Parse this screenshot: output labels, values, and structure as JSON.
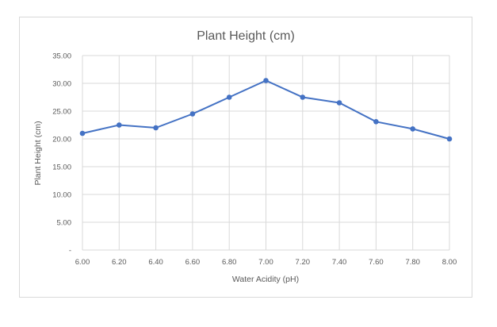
{
  "chart_data": {
    "type": "line",
    "title": "Plant Height (cm)",
    "xlabel": "Water Acidity (pH)",
    "ylabel": "Plant Height (cm)",
    "x": [
      6.0,
      6.2,
      6.4,
      6.6,
      6.8,
      7.0,
      7.2,
      7.4,
      7.6,
      7.8,
      8.0
    ],
    "series": [
      {
        "values": [
          21.0,
          22.5,
          22.0,
          24.5,
          27.5,
          30.5,
          27.5,
          26.5,
          23.1,
          21.8,
          20.0
        ]
      }
    ],
    "xlim": [
      6.0,
      8.0
    ],
    "ylim": [
      0,
      35
    ],
    "x_ticks": [
      6.0,
      6.2,
      6.4,
      6.6,
      6.8,
      7.0,
      7.2,
      7.4,
      7.6,
      7.8,
      8.0
    ],
    "x_tick_labels": [
      "6.00",
      "6.20",
      "6.40",
      "6.60",
      "6.80",
      "7.00",
      "7.20",
      "7.40",
      "7.60",
      "7.80",
      "8.00"
    ],
    "y_ticks": [
      0,
      5,
      10,
      15,
      20,
      25,
      30,
      35
    ],
    "y_tick_labels": [
      "-",
      "5.00",
      "10.00",
      "15.00",
      "20.00",
      "25.00",
      "30.00",
      "35.00"
    ],
    "grid": true,
    "legend": false,
    "colors": {
      "line": "#4472c4",
      "grid": "#d9d9d9",
      "text": "#595959"
    }
  }
}
